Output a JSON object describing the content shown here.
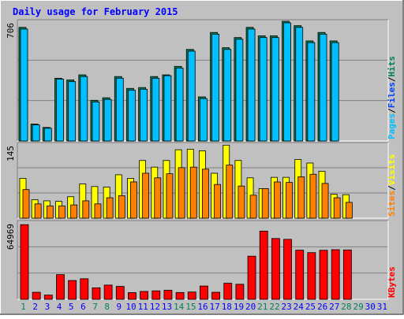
{
  "title": "Daily usage for February 2015",
  "colors": {
    "background": "#c0c0c0",
    "frame_light": "#ffffff",
    "frame_dark": "#808080",
    "title": "#0000ff",
    "hits": "#00805c",
    "files": "#0040ff",
    "pages": "#00c0ff",
    "visits": "#ffff00",
    "sites": "#ff8000",
    "kbytes": "#ff0000",
    "weekday_label": "#0000ff",
    "weekend_label": "#00805c",
    "gridline": "#808080"
  },
  "chart_data": [
    {
      "type": "bar",
      "panel": "hits-files-pages",
      "ymax_label": "706",
      "ylim": [
        0,
        706
      ],
      "legend": [
        "Pages",
        "Files",
        "Hits"
      ],
      "days": [
        1,
        2,
        3,
        4,
        5,
        6,
        7,
        8,
        9,
        10,
        11,
        12,
        13,
        14,
        15,
        16,
        17,
        18,
        19,
        20,
        21,
        22,
        23,
        24,
        25,
        26,
        27,
        28
      ],
      "series": [
        {
          "name": "Hits",
          "values": [
            670,
            100,
            80,
            370,
            360,
            390,
            240,
            255,
            380,
            310,
            315,
            380,
            390,
            440,
            540,
            260,
            640,
            550,
            610,
            670,
            620,
            620,
            725,
            680,
            590,
            640,
            590,
            0
          ]
        },
        {
          "name": "Files",
          "values": [
            660,
            95,
            75,
            365,
            350,
            380,
            230,
            245,
            370,
            300,
            305,
            370,
            385,
            430,
            530,
            250,
            630,
            540,
            600,
            660,
            610,
            610,
            715,
            670,
            580,
            630,
            580,
            0
          ]
        },
        {
          "name": "Pages",
          "values": [
            660,
            95,
            75,
            365,
            350,
            380,
            230,
            245,
            370,
            300,
            305,
            370,
            385,
            430,
            530,
            250,
            630,
            540,
            600,
            660,
            610,
            610,
            715,
            670,
            580,
            630,
            580,
            0
          ]
        }
      ]
    },
    {
      "type": "bar",
      "panel": "visits-sites",
      "ymax_label": "145",
      "ylim": [
        0,
        145
      ],
      "legend": [
        "Sites",
        "Visits"
      ],
      "days": [
        1,
        2,
        3,
        4,
        5,
        6,
        7,
        8,
        9,
        10,
        11,
        12,
        13,
        14,
        15,
        16,
        17,
        18,
        19,
        20,
        21,
        22,
        23,
        24,
        25,
        26,
        27,
        28
      ],
      "series": [
        {
          "name": "Visits",
          "values": [
            78,
            36,
            34,
            33,
            42,
            67,
            62,
            61,
            85,
            78,
            113,
            100,
            113,
            134,
            135,
            132,
            88,
            143,
            113,
            79,
            58,
            80,
            80,
            115,
            108,
            92,
            47,
            46
          ]
        },
        {
          "name": "Sites",
          "values": [
            56,
            28,
            24,
            24,
            26,
            34,
            28,
            40,
            44,
            71,
            88,
            79,
            87,
            99,
            100,
            96,
            66,
            104,
            63,
            45,
            58,
            71,
            70,
            81,
            86,
            68,
            40,
            31
          ]
        }
      ]
    },
    {
      "type": "bar",
      "panel": "kbytes",
      "ymax_label": "64969",
      "ylim": [
        0,
        64969
      ],
      "legend": [
        "KBytes"
      ],
      "days": [
        1,
        2,
        3,
        4,
        5,
        6,
        7,
        8,
        9,
        10,
        11,
        12,
        13,
        14,
        15,
        16,
        17,
        18,
        19,
        20,
        21,
        22,
        23,
        24,
        25,
        26,
        27,
        28
      ],
      "series": [
        {
          "name": "KBytes",
          "values": [
            63500,
            6000,
            3600,
            21000,
            16000,
            17500,
            9800,
            12100,
            11000,
            5700,
            6700,
            7200,
            7700,
            5800,
            6200,
            11300,
            6000,
            13700,
            12800,
            36700,
            58000,
            51700,
            51000,
            41800,
            39700,
            41700,
            42200,
            42000
          ]
        }
      ]
    }
  ],
  "x_axis": {
    "labels": [
      "1",
      "2",
      "3",
      "4",
      "5",
      "6",
      "7",
      "8",
      "9",
      "10",
      "11",
      "12",
      "13",
      "14",
      "15",
      "16",
      "17",
      "18",
      "19",
      "20",
      "21",
      "22",
      "23",
      "24",
      "25",
      "26",
      "27",
      "28",
      "29",
      "30",
      "31"
    ],
    "weekend_days": [
      1,
      7,
      8,
      14,
      15,
      21,
      22,
      28,
      29
    ]
  }
}
